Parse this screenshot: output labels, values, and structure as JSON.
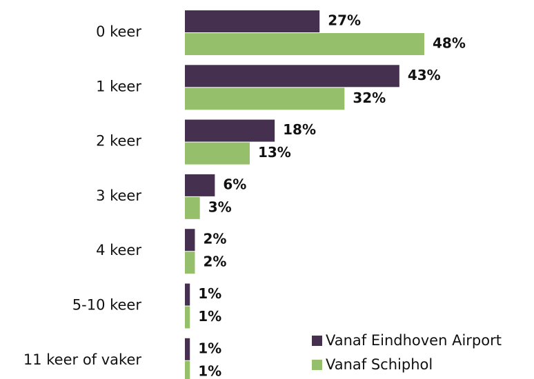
{
  "chart_data": {
    "type": "bar",
    "orientation": "horizontal",
    "categories": [
      "0 keer",
      "1 keer",
      "2 keer",
      "3 keer",
      "4 keer",
      "5-10 keer",
      "11 keer of vaker"
    ],
    "series": [
      {
        "name": "Vanaf Eindhoven Airport",
        "color": "#45304f",
        "values": [
          27,
          43,
          18,
          6,
          2,
          1,
          1
        ],
        "value_labels": [
          "27%",
          "43%",
          "18%",
          "6%",
          "2%",
          "1%",
          "1%"
        ]
      },
      {
        "name": "Vanaf Schiphol",
        "color": "#96bf6b",
        "values": [
          48,
          32,
          13,
          3,
          2,
          1,
          1
        ],
        "value_labels": [
          "48%",
          "32%",
          "13%",
          "3%",
          "2%",
          "1%",
          "1%"
        ]
      }
    ],
    "legend": "bottom-right"
  }
}
